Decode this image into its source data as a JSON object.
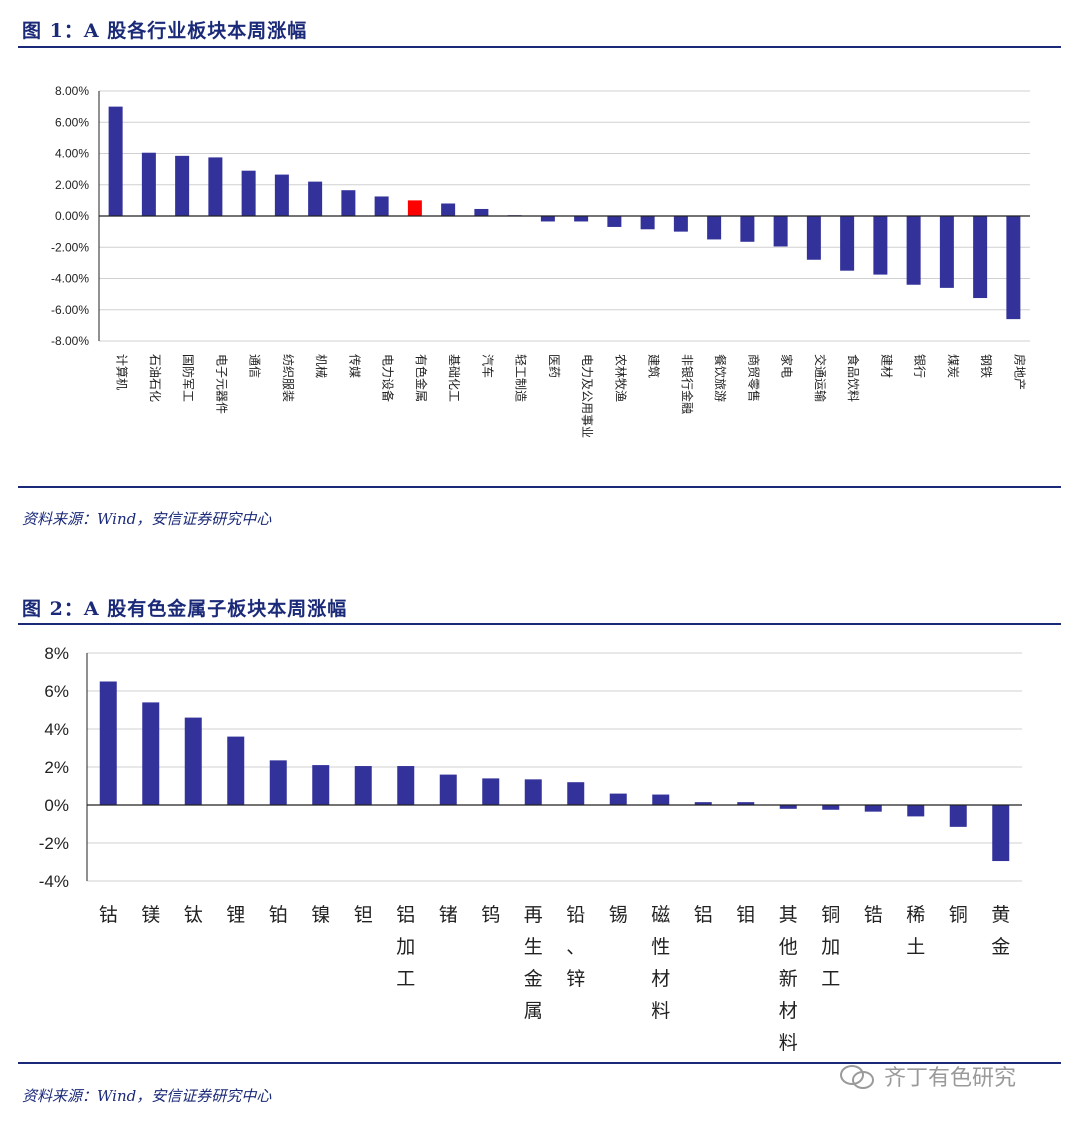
{
  "figure1": {
    "title": "图 1：A 股各行业板块本周涨幅",
    "source": "资料来源：Wind，安信证券研究中心"
  },
  "figure2": {
    "title": "图 2：A 股有色金属子板块本周涨幅",
    "source": "资料来源：Wind，安信证券研究中心"
  },
  "watermark": "齐丁有色研究",
  "colors": {
    "bar": "#33329a",
    "highlight": "#ff0000",
    "accent": "#1b2a78"
  },
  "chart_data": [
    {
      "type": "bar",
      "categories": [
        "计算机",
        "石油石化",
        "国防军工",
        "电子元器件",
        "通信",
        "纺织服装",
        "机械",
        "传媒",
        "电力设备",
        "有色金属",
        "基础化工",
        "汽车",
        "轻工制造",
        "医药",
        "电力及公用事业",
        "农林牧渔",
        "建筑",
        "非银行金融",
        "餐饮旅游",
        "商贸零售",
        "家电",
        "交通运输",
        "食品饮料",
        "建材",
        "银行",
        "煤炭",
        "钢铁",
        "房地产"
      ],
      "values": [
        7.0,
        4.05,
        3.85,
        3.75,
        2.9,
        2.65,
        2.2,
        1.65,
        1.25,
        1.0,
        0.8,
        0.45,
        0.05,
        -0.35,
        -0.35,
        -0.7,
        -0.85,
        -1.0,
        -1.5,
        -1.65,
        -1.95,
        -2.8,
        -3.5,
        -3.75,
        -4.4,
        -4.6,
        -5.25,
        -6.6
      ],
      "highlight": "有色金属",
      "ylim": [
        -8,
        8
      ],
      "yticks": [
        "8.00%",
        "6.00%",
        "4.00%",
        "2.00%",
        "0.00%",
        "-2.00%",
        "-4.00%",
        "-6.00%",
        "-8.00%"
      ],
      "grid": true,
      "legend": "none"
    },
    {
      "type": "bar",
      "categories": [
        "钴",
        "镁",
        "钛",
        "锂",
        "铂",
        "镍",
        "钽",
        "铝加工",
        "锗",
        "钨",
        "再生金属",
        "铅、锌",
        "锡",
        "磁性材料",
        "铝",
        "钼",
        "其他新材料",
        "铜加工",
        "锆",
        "稀土",
        "铜",
        "黄金"
      ],
      "values": [
        6.5,
        5.4,
        4.6,
        3.6,
        2.35,
        2.1,
        2.05,
        2.05,
        1.6,
        1.4,
        1.35,
        1.2,
        0.6,
        0.55,
        0.15,
        0.15,
        -0.2,
        -0.25,
        -0.35,
        -0.6,
        -1.15,
        -2.95
      ],
      "ylim": [
        -4,
        8
      ],
      "yticks": [
        "8%",
        "6%",
        "4%",
        "2%",
        "0%",
        "-2%",
        "-4%"
      ],
      "grid": true,
      "legend": "none"
    }
  ]
}
